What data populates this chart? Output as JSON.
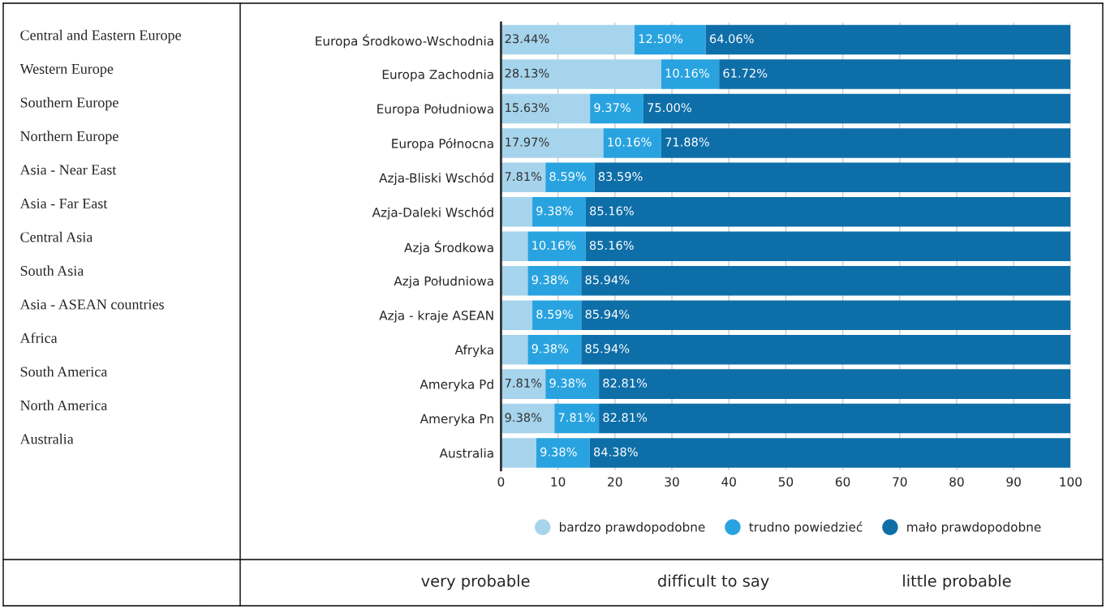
{
  "chart_data": {
    "type": "bar",
    "orientation": "horizontal",
    "stacked": true,
    "categories": [
      "Europa Środkowo-Wschodnia",
      "Europa Zachodnia",
      "Europa Południowa",
      "Europa Północna",
      "Azja-Bliski Wschód",
      "Azja-Daleki Wschód",
      "Azja Środkowa",
      "Azja Południowa",
      "Azja - kraje ASEAN",
      "Afryka",
      "Ameryka Pd",
      "Ameryka Pn",
      "Australia"
    ],
    "series": [
      {
        "name": "bardzo prawdopodobne",
        "color": "#a6d4ec",
        "values": [
          23.44,
          28.13,
          15.63,
          17.97,
          7.81,
          5.5,
          4.7,
          4.7,
          5.5,
          4.7,
          7.81,
          9.38,
          6.2
        ],
        "value_labels": [
          "23.44%",
          "28.13%",
          "15.63%",
          "17.97%",
          "7.81%",
          null,
          null,
          null,
          null,
          null,
          "7.81%",
          "9.38%",
          null
        ]
      },
      {
        "name": "trudno powiedzieć",
        "color": "#29a3e0",
        "values": [
          12.5,
          10.16,
          9.37,
          10.16,
          8.59,
          9.38,
          10.16,
          9.38,
          8.59,
          9.38,
          9.38,
          7.81,
          9.38
        ],
        "value_labels": [
          "12.50%",
          "10.16%",
          "9.37%",
          "10.16%",
          "8.59%",
          "9.38%",
          "10.16%",
          "9.38%",
          "8.59%",
          "9.38%",
          "9.38%",
          "7.81%",
          "9.38%"
        ]
      },
      {
        "name": "mało prawdopodobne",
        "color": "#0e6ea8",
        "values": [
          64.06,
          61.72,
          75.0,
          71.88,
          83.59,
          85.16,
          85.16,
          85.94,
          85.94,
          85.94,
          82.81,
          82.81,
          84.38
        ],
        "value_labels": [
          "64.06%",
          "61.72%",
          "75.00%",
          "71.88%",
          "83.59%",
          "85.16%",
          "85.16%",
          "85.94%",
          "85.94%",
          "85.94%",
          "82.81%",
          "82.81%",
          "84.38%"
        ]
      }
    ],
    "xlim": [
      0,
      100
    ],
    "xticks": [
      0,
      10,
      20,
      30,
      40,
      50,
      60,
      70,
      80,
      90,
      100
    ],
    "grid": "x",
    "legend": "bottom",
    "annotations": [
      "Central and Eastern Europe",
      "Western Europe",
      "Southern Europe",
      "Northern Europe",
      "Asia - Near East",
      "Asia - Far East",
      "Central Asia",
      "South Asia",
      "Asia - ASEAN countries",
      "Africa",
      "South America",
      "North America",
      "Australia",
      "very probable",
      "difficult to say",
      "little probable"
    ]
  }
}
